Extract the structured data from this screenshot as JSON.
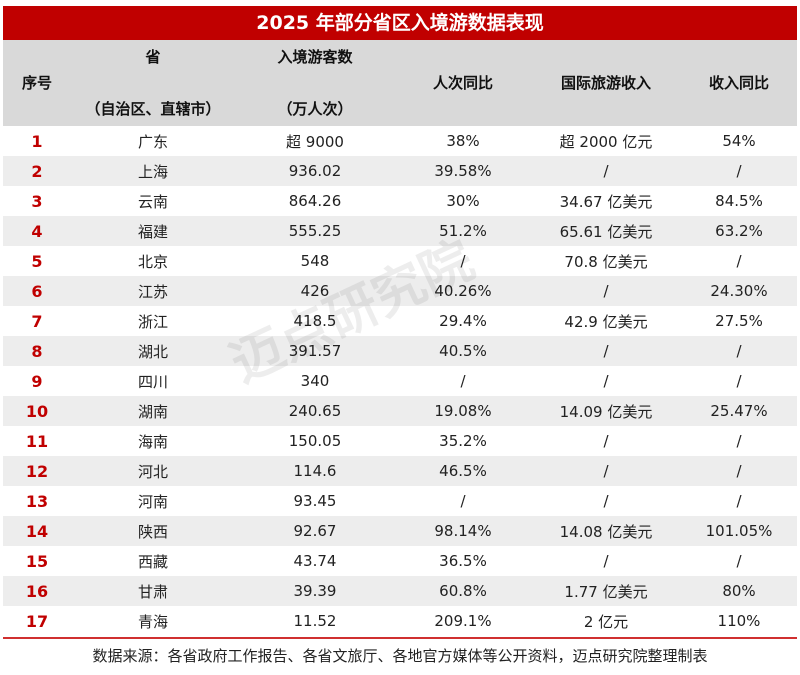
{
  "title": "2025 年部分省区入境游数据表现",
  "headers": [
    {
      "l1": "序号",
      "l2": ""
    },
    {
      "l1": "省",
      "l2": "（自治区、直辖市）"
    },
    {
      "l1": "入境游客数",
      "l2": "（万人次）"
    },
    {
      "l1": "人次同比",
      "l2": ""
    },
    {
      "l1": "国际旅游收入",
      "l2": ""
    },
    {
      "l1": "收入同比",
      "l2": ""
    }
  ],
  "rows": [
    [
      "1",
      "广东",
      "超 9000",
      "38%",
      "超 2000 亿元",
      "54%"
    ],
    [
      "2",
      "上海",
      "936.02",
      "39.58%",
      "/",
      "/"
    ],
    [
      "3",
      "云南",
      "864.26",
      "30%",
      "34.67 亿美元",
      "84.5%"
    ],
    [
      "4",
      "福建",
      "555.25",
      "51.2%",
      "65.61 亿美元",
      "63.2%"
    ],
    [
      "5",
      "北京",
      "548",
      "/",
      "70.8 亿美元",
      "/"
    ],
    [
      "6",
      "江苏",
      "426",
      "40.26%",
      "/",
      "24.30%"
    ],
    [
      "7",
      "浙江",
      "418.5",
      "29.4%",
      "42.9 亿美元",
      "27.5%"
    ],
    [
      "8",
      "湖北",
      "391.57",
      "40.5%",
      "/",
      "/"
    ],
    [
      "9",
      "四川",
      "340",
      "/",
      "/",
      "/"
    ],
    [
      "10",
      "湖南",
      "240.65",
      "19.08%",
      "14.09 亿美元",
      "25.47%"
    ],
    [
      "11",
      "海南",
      "150.05",
      "35.2%",
      "/",
      "/"
    ],
    [
      "12",
      "河北",
      "114.6",
      "46.5%",
      "/",
      "/"
    ],
    [
      "13",
      "河南",
      "93.45",
      "/",
      "/",
      "/"
    ],
    [
      "14",
      "陕西",
      "92.67",
      "98.14%",
      "14.08 亿美元",
      "101.05%"
    ],
    [
      "15",
      "西藏",
      "43.74",
      "36.5%",
      "/",
      "/"
    ],
    [
      "16",
      "甘肃",
      "39.39",
      "60.8%",
      "1.77 亿美元",
      "80%"
    ],
    [
      "17",
      "青海",
      "11.52",
      "209.1%",
      "2 亿元",
      "110%"
    ]
  ],
  "footer": "数据来源：各省政府工作报告、各省文旅厅、各地官方媒体等公开资料，迈点研究院整理制表",
  "watermark": "迈点研究院 MEADIN ACADEMY",
  "colors": {
    "accent": "#c00000",
    "header_bg": "#d9d9d9",
    "stripe": "#ededed"
  }
}
